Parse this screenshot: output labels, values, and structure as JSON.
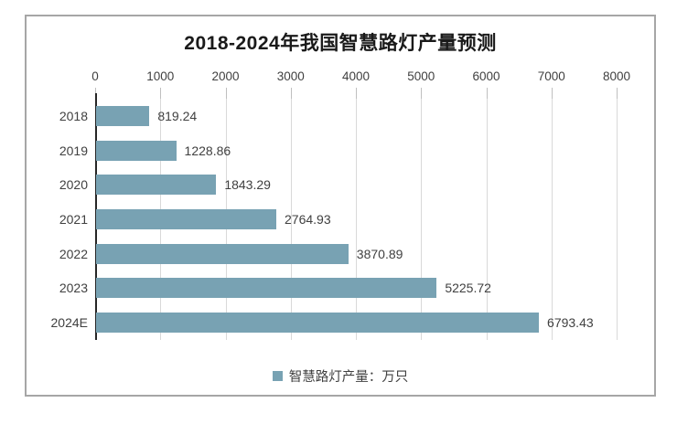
{
  "chart_data": {
    "type": "bar",
    "orientation": "horizontal",
    "title": "2018-2024年我国智慧路灯产量预测",
    "categories": [
      "2018",
      "2019",
      "2020",
      "2021",
      "2022",
      "2023",
      "2024E"
    ],
    "series": [
      {
        "name": "智慧路灯产量：万只",
        "values": [
          819.24,
          1228.86,
          1843.29,
          2764.93,
          3870.89,
          5225.72,
          6793.43
        ],
        "value_labels": [
          "819.24",
          "1228.86",
          "1843.29",
          "2764.93",
          "3870.89",
          "5225.72",
          "6793.43"
        ]
      }
    ],
    "x_axis": {
      "position": "top",
      "min": 0,
      "max": 8000,
      "ticks": [
        0,
        1000,
        2000,
        3000,
        4000,
        5000,
        6000,
        7000,
        8000
      ],
      "tick_labels": [
        "0",
        "1000",
        "2000",
        "3000",
        "4000",
        "5000",
        "6000",
        "7000",
        "8000"
      ]
    },
    "grid": true,
    "data_labels": true,
    "legend": {
      "position": "bottom",
      "label": "智慧路灯产量：万只"
    },
    "colors": {
      "bar": "#78a2b3",
      "legend_marker": "#78a2b3",
      "gridline": "#d9d9d9",
      "axis_line": "#262626",
      "text": "#404040",
      "title_text": "#1a1a1a",
      "frame_border": "#a6a6a6"
    }
  }
}
